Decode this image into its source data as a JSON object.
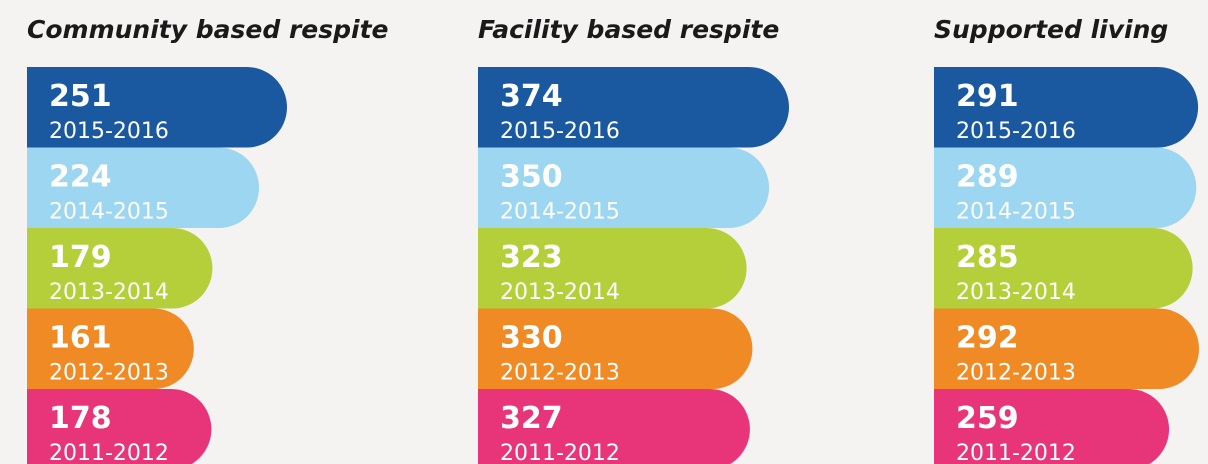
{
  "chart_data": [
    {
      "type": "bar",
      "title": "Community based respite",
      "categories": [
        "2015-2016",
        "2014-2015",
        "2013-2014",
        "2012-2013",
        "2011-2012"
      ],
      "values": [
        251,
        224,
        179,
        161,
        178
      ],
      "colors": [
        "#1a58a0",
        "#9dd6f1",
        "#b4cf3a",
        "#f08a25",
        "#e8357a"
      ]
    },
    {
      "type": "bar",
      "title": "Facility based respite",
      "categories": [
        "2015-2016",
        "2014-2015",
        "2013-2014",
        "2012-2013",
        "2011-2012"
      ],
      "values": [
        374,
        350,
        323,
        330,
        327
      ],
      "colors": [
        "#1a58a0",
        "#9dd6f1",
        "#b4cf3a",
        "#f08a25",
        "#e8357a"
      ]
    },
    {
      "type": "bar",
      "title": "Supported living",
      "categories": [
        "2015-2016",
        "2014-2015",
        "2013-2014",
        "2012-2013",
        "2011-2012"
      ],
      "values": [
        291,
        289,
        285,
        292,
        259
      ],
      "colors": [
        "#1a58a0",
        "#9dd6f1",
        "#b4cf3a",
        "#f08a25",
        "#e8357a"
      ]
    }
  ]
}
